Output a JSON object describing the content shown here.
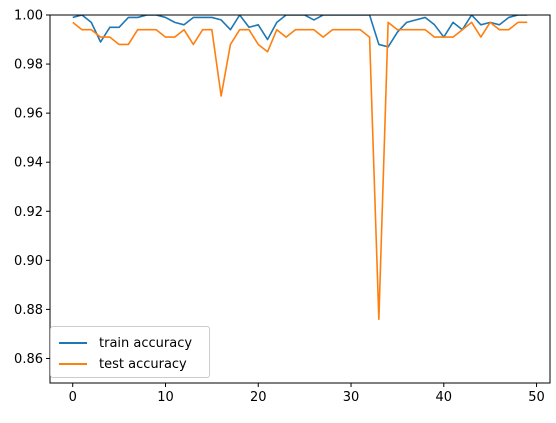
{
  "colors": {
    "train": "#1f77b4",
    "test": "#ff7f0e",
    "axis": "#000000",
    "background": "#ffffff"
  },
  "chart_data": {
    "type": "line",
    "title": "",
    "xlabel": "",
    "ylabel": "",
    "xlim": [
      -2.45,
      51.45
    ],
    "ylim": [
      0.85,
      1.0
    ],
    "grid": false,
    "legend_position": "lower-left",
    "x_ticks": [
      0,
      10,
      20,
      30,
      40,
      50
    ],
    "x_tick_labels": [
      "0",
      "10",
      "20",
      "30",
      "40",
      "50"
    ],
    "y_ticks": [
      0.86,
      0.88,
      0.9,
      0.92,
      0.94,
      0.96,
      0.98,
      1.0
    ],
    "y_tick_labels": [
      "0.86",
      "0.88",
      "0.90",
      "0.92",
      "0.94",
      "0.96",
      "0.98",
      "1.00"
    ],
    "x": [
      0,
      1,
      2,
      3,
      4,
      5,
      6,
      7,
      8,
      9,
      10,
      11,
      12,
      13,
      14,
      15,
      16,
      17,
      18,
      19,
      20,
      21,
      22,
      23,
      24,
      25,
      26,
      27,
      28,
      29,
      30,
      31,
      32,
      33,
      34,
      35,
      36,
      37,
      38,
      39,
      40,
      41,
      42,
      43,
      44,
      45,
      46,
      47,
      48,
      49
    ],
    "series": [
      {
        "name": "train accuracy",
        "color": "#1f77b4",
        "values": [
          0.999,
          1.0,
          0.997,
          0.989,
          0.995,
          0.995,
          0.999,
          0.999,
          1.0,
          1.0,
          0.999,
          0.997,
          0.996,
          0.999,
          0.999,
          0.999,
          0.998,
          0.994,
          1.0,
          0.995,
          0.996,
          0.99,
          0.997,
          1.0,
          1.0,
          1.0,
          0.998,
          1.0,
          1.0,
          1.0,
          1.0,
          1.0,
          1.0,
          0.988,
          0.987,
          0.993,
          0.997,
          0.998,
          0.999,
          0.996,
          0.991,
          0.997,
          0.994,
          1.0,
          0.996,
          0.997,
          0.996,
          0.999,
          1.0,
          1.0
        ]
      },
      {
        "name": "test accuracy",
        "color": "#ff7f0e",
        "values": [
          0.997,
          0.994,
          0.994,
          0.991,
          0.991,
          0.988,
          0.988,
          0.994,
          0.994,
          0.994,
          0.991,
          0.991,
          0.994,
          0.988,
          0.994,
          0.994,
          0.967,
          0.988,
          0.994,
          0.994,
          0.988,
          0.985,
          0.994,
          0.991,
          0.994,
          0.994,
          0.994,
          0.991,
          0.994,
          0.994,
          0.994,
          0.994,
          0.991,
          0.876,
          0.997,
          0.994,
          0.994,
          0.994,
          0.994,
          0.991,
          0.991,
          0.991,
          0.994,
          0.997,
          0.991,
          0.997,
          0.994,
          0.994,
          0.997,
          0.997
        ]
      }
    ]
  }
}
